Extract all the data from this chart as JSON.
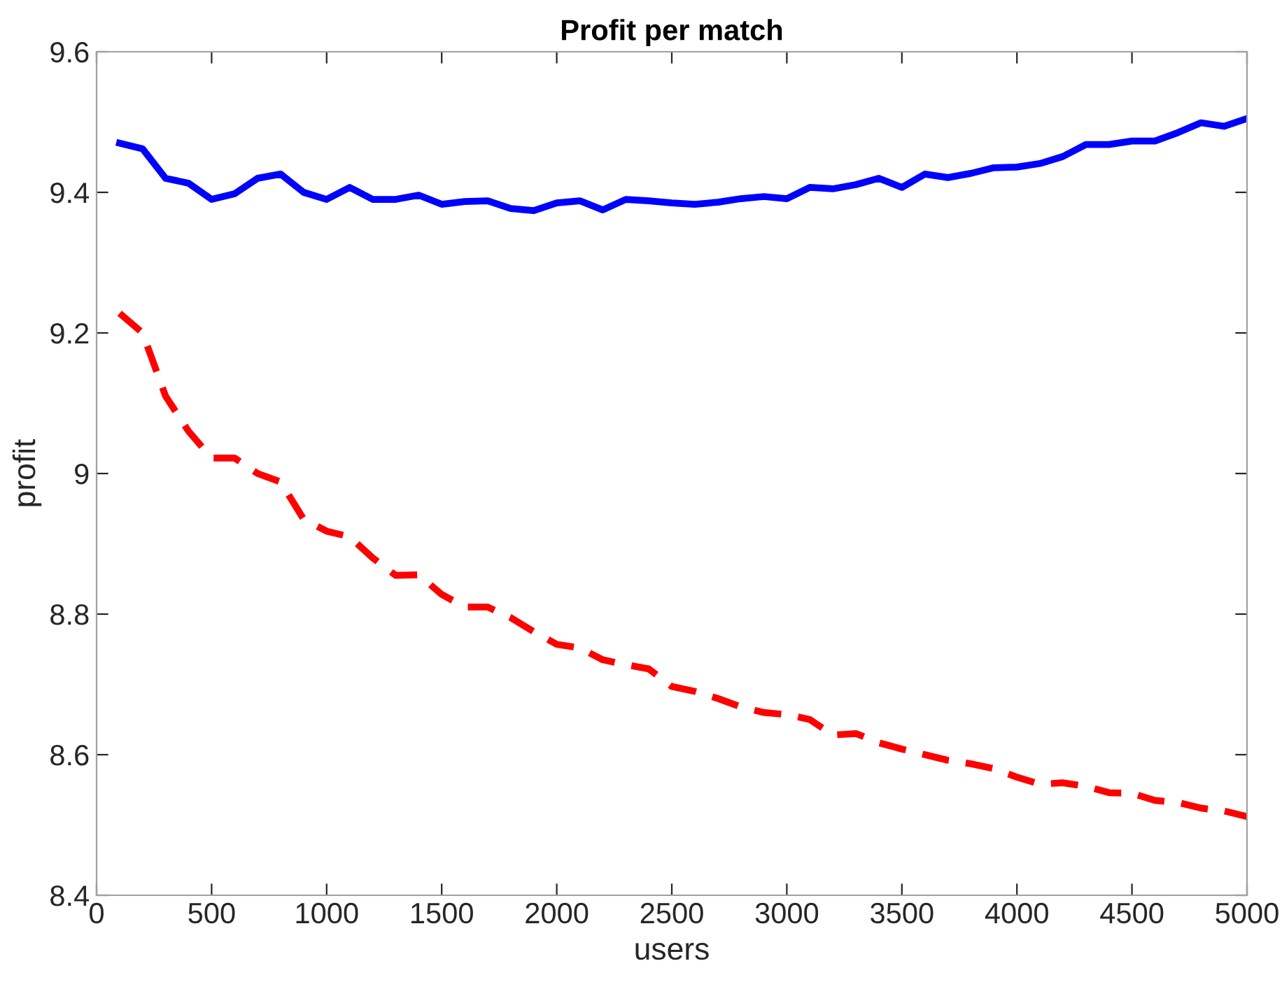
{
  "chart_data": {
    "type": "line",
    "title": "Profit per match",
    "xlabel": "users",
    "ylabel": "profit",
    "x": [
      100,
      200,
      300,
      400,
      500,
      600,
      700,
      800,
      900,
      1000,
      1100,
      1200,
      1300,
      1400,
      1500,
      1600,
      1700,
      1800,
      1900,
      2000,
      2100,
      2200,
      2300,
      2400,
      2500,
      2600,
      2700,
      2800,
      2900,
      3000,
      3100,
      3200,
      3300,
      3400,
      3500,
      3600,
      3700,
      3800,
      3900,
      4000,
      4100,
      4200,
      4300,
      4400,
      4500,
      4600,
      4700,
      4800,
      4900,
      5000
    ],
    "series": [
      {
        "color": "#0000ff",
        "line_style": "solid",
        "values": [
          9.47,
          9.462,
          9.42,
          9.413,
          9.39,
          9.398,
          9.42,
          9.426,
          9.4,
          9.39,
          9.407,
          9.39,
          9.39,
          9.396,
          9.383,
          9.387,
          9.388,
          9.377,
          9.374,
          9.385,
          9.388,
          9.375,
          9.39,
          9.388,
          9.385,
          9.383,
          9.386,
          9.391,
          9.394,
          9.391,
          9.407,
          9.405,
          9.411,
          9.42,
          9.407,
          9.426,
          9.421,
          9.427,
          9.435,
          9.436,
          9.441,
          9.451,
          9.468,
          9.468,
          9.473,
          9.473,
          9.485,
          9.499,
          9.494,
          9.505
        ]
      },
      {
        "color": "#ff0000",
        "line_style": "dashed",
        "values": [
          9.228,
          9.2,
          9.11,
          9.06,
          9.022,
          9.022,
          9.0,
          8.988,
          8.935,
          8.918,
          8.91,
          8.88,
          8.855,
          8.856,
          8.828,
          8.81,
          8.81,
          8.795,
          8.775,
          8.757,
          8.752,
          8.735,
          8.728,
          8.722,
          8.697,
          8.69,
          8.68,
          8.668,
          8.66,
          8.657,
          8.65,
          8.628,
          8.63,
          8.617,
          8.608,
          8.6,
          8.592,
          8.587,
          8.58,
          8.568,
          8.558,
          8.56,
          8.555,
          8.546,
          8.545,
          8.535,
          8.532,
          8.524,
          8.52,
          8.512
        ]
      }
    ],
    "xlim": [
      0,
      5000
    ],
    "xticks": [
      0,
      500,
      1000,
      1500,
      2000,
      2500,
      3000,
      3500,
      4000,
      4500,
      5000
    ],
    "ylim": [
      8.4,
      9.6
    ],
    "yticks": [
      8.4,
      8.6,
      8.8,
      9,
      9.2,
      9.4,
      9.6
    ],
    "grid": false,
    "legend": false
  }
}
